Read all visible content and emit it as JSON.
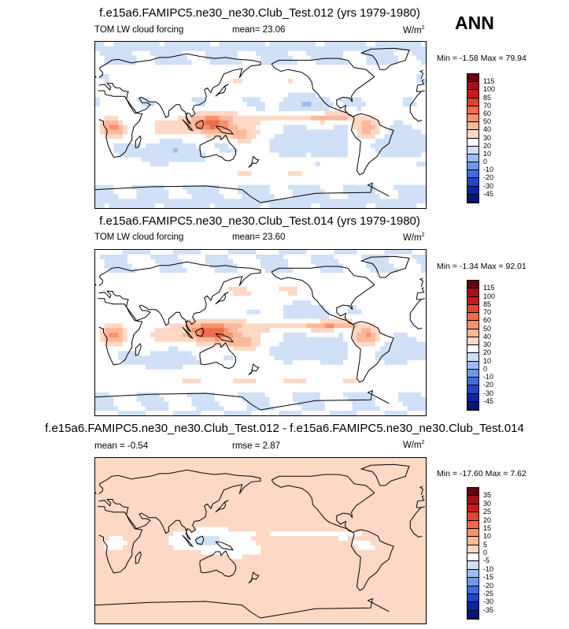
{
  "annual_label": "ANN",
  "chart_data": [
    {
      "type": "heatmap",
      "title": "f.e15a6.FAMIPC5.ne30_ne30.Club_Test.012 (yrs 1979-1980)",
      "left_label": "TOM LW cloud forcing",
      "stat_text": "mean=  23.06",
      "units_base": "W/m",
      "units_sup": "2",
      "minmax": "Min =  -1.58 Max =  79.94",
      "levels": [
        "115",
        "100",
        "85",
        "70",
        "60",
        "50",
        "40",
        "30",
        "20",
        "10",
        "0",
        "-10",
        "-20",
        "-30",
        "-45"
      ],
      "colors": [
        "#67000d",
        "#a50f15",
        "#cb181d",
        "#e0452f",
        "#f06a4c",
        "#f7926e",
        "#fbb99b",
        "#fdd8c4",
        "#ffffff",
        "#cfe0f7",
        "#9dbcf2",
        "#6f97ec",
        "#3f6ce0",
        "#2046c8",
        "#0d24a6",
        "#06157a"
      ],
      "field": {
        "base": 22,
        "land_mod": 4,
        "itcz": 30,
        "warm_pool": 38,
        "south_america": 25,
        "africa": 28,
        "subtropic": -10,
        "storm": 18,
        "polar": -3
      }
    },
    {
      "type": "heatmap",
      "title": "f.e15a6.FAMIPC5.ne30_ne30.Club_Test.014 (yrs 1979-1980)",
      "left_label": "TOM LW cloud forcing",
      "stat_text": "mean=  23.60",
      "units_base": "W/m",
      "units_sup": "2",
      "minmax": "Min =  -1.34 Max =  92.01",
      "levels": [
        "115",
        "100",
        "85",
        "70",
        "60",
        "50",
        "40",
        "30",
        "20",
        "10",
        "0",
        "-10",
        "-20",
        "-30",
        "-45"
      ],
      "colors": [
        "#67000d",
        "#a50f15",
        "#cb181d",
        "#e0452f",
        "#f06a4c",
        "#f7926e",
        "#fbb99b",
        "#fdd8c4",
        "#ffffff",
        "#cfe0f7",
        "#9dbcf2",
        "#6f97ec",
        "#3f6ce0",
        "#2046c8",
        "#0d24a6",
        "#06157a"
      ],
      "field": {
        "base": 23,
        "land_mod": 4,
        "itcz": 33,
        "warm_pool": 42,
        "south_america": 28,
        "africa": 31,
        "subtropic": -10,
        "storm": 19,
        "polar": -3
      }
    },
    {
      "type": "heatmap",
      "title": "f.e15a6.FAMIPC5.ne30_ne30.Club_Test.012 - f.e15a6.FAMIPC5.ne30_ne30.Club_Test.014",
      "left_label": "mean =  -0.54",
      "stat_text": "rmse =   2.87",
      "units_base": "W/m",
      "units_sup": "2",
      "minmax": "Min = -17.60 Max =   7.62",
      "levels": [
        "35",
        "30",
        "25",
        "20",
        "15",
        "10",
        "5",
        "0",
        "-5",
        "-10",
        "-15",
        "-20",
        "-25",
        "-30",
        "-35"
      ],
      "colors": [
        "#67000d",
        "#a50f15",
        "#cb181d",
        "#e0452f",
        "#f06a4c",
        "#f7926e",
        "#fbb99b",
        "#fdd8c4",
        "#ffffff",
        "#cfe0f7",
        "#9dbcf2",
        "#6f97ec",
        "#3f6ce0",
        "#2046c8",
        "#0d24a6",
        "#06157a"
      ],
      "field": {
        "base": 1.5,
        "land_mod": -2,
        "itcz": -4,
        "warm_pool": -8,
        "south_america": -3,
        "africa": -3,
        "subtropic": 1,
        "storm": 1,
        "polar": 0.5
      }
    }
  ]
}
